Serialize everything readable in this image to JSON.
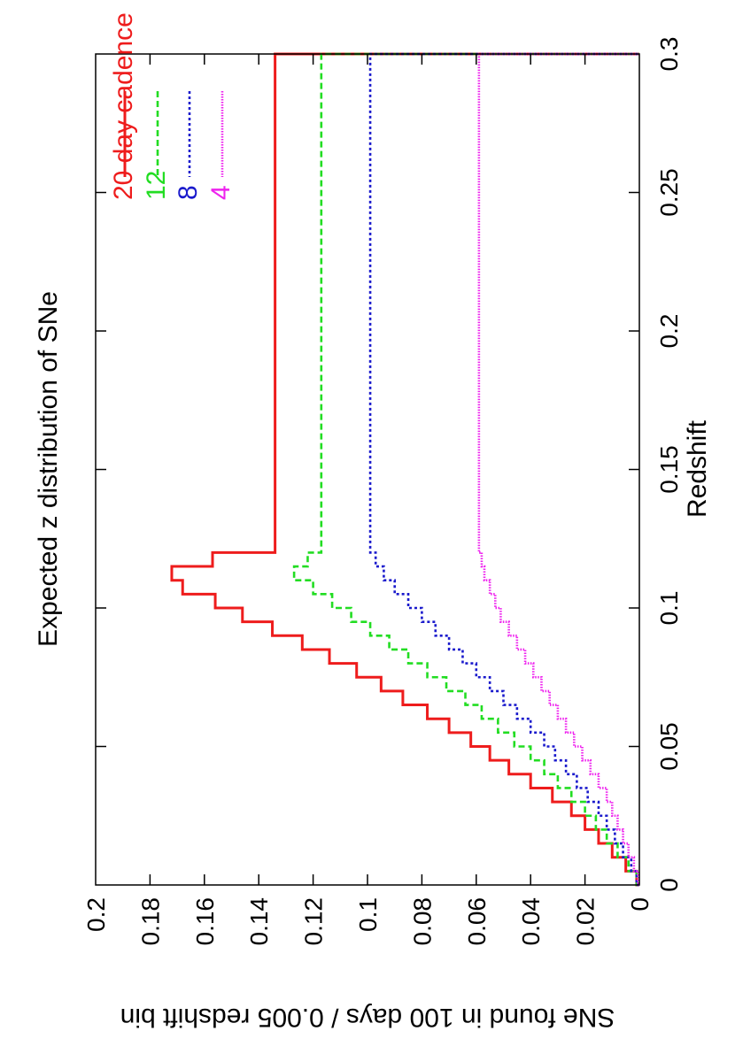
{
  "chart_data": {
    "type": "line",
    "title": "Expected z distribution of SNe",
    "xlabel": "Redshift",
    "ylabel": "SNe found in 100 days / 0.005 redshift bin",
    "xlim": [
      0,
      0.3
    ],
    "ylim": [
      0,
      0.2
    ],
    "xticks": [
      "0",
      "0.05",
      "0.1",
      "0.15",
      "0.2",
      "0.25",
      "0.3"
    ],
    "yticks": [
      "0",
      "0.02",
      "0.04",
      "0.06",
      "0.08",
      "0.1",
      "0.12",
      "0.14",
      "0.16",
      "0.18",
      "0.2"
    ],
    "grid": false,
    "legend_position": "top-right",
    "bin_width": 0.005,
    "bin_edges": [
      0,
      0.005,
      0.01,
      0.015,
      0.02,
      0.025,
      0.03,
      0.035,
      0.04,
      0.045,
      0.05,
      0.055,
      0.06,
      0.065,
      0.07,
      0.075,
      0.08,
      0.085,
      0.09,
      0.095,
      0.1,
      0.105,
      0.11,
      0.115,
      0.12,
      0.3
    ],
    "series": [
      {
        "name": "20 day cadence",
        "color": "#ee1c1c",
        "dash": "solid",
        "values": [
          0.001,
          0.005,
          0.01,
          0.015,
          0.02,
          0.025,
          0.032,
          0.04,
          0.048,
          0.055,
          0.062,
          0.07,
          0.078,
          0.087,
          0.095,
          0.104,
          0.114,
          0.124,
          0.135,
          0.146,
          0.156,
          0.168,
          0.172,
          0.157,
          0.134,
          0
        ]
      },
      {
        "name": "12",
        "color": "#22dd22",
        "dash": "dashed",
        "values": [
          0.001,
          0.004,
          0.008,
          0.012,
          0.016,
          0.02,
          0.025,
          0.03,
          0.035,
          0.04,
          0.046,
          0.052,
          0.058,
          0.064,
          0.071,
          0.078,
          0.085,
          0.092,
          0.099,
          0.106,
          0.113,
          0.12,
          0.127,
          0.122,
          0.117,
          0
        ]
      },
      {
        "name": "8",
        "color": "#1a1acc",
        "dash": "dotted",
        "values": [
          0.001,
          0.003,
          0.006,
          0.009,
          0.012,
          0.015,
          0.019,
          0.023,
          0.027,
          0.031,
          0.035,
          0.04,
          0.045,
          0.05,
          0.055,
          0.06,
          0.065,
          0.07,
          0.075,
          0.08,
          0.085,
          0.09,
          0.094,
          0.097,
          0.099,
          0
        ]
      },
      {
        "name": "4",
        "color": "#ee22ee",
        "dash": "dotted-fine",
        "values": [
          0.0005,
          0.002,
          0.004,
          0.006,
          0.008,
          0.01,
          0.012,
          0.015,
          0.018,
          0.021,
          0.024,
          0.027,
          0.03,
          0.033,
          0.036,
          0.039,
          0.042,
          0.045,
          0.048,
          0.051,
          0.053,
          0.055,
          0.057,
          0.058,
          0.059,
          0
        ]
      }
    ]
  }
}
